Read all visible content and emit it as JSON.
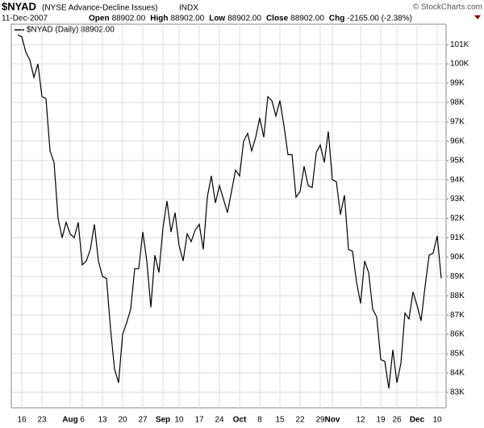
{
  "header": {
    "symbol": "$NYAD",
    "name": "(NYSE Advance-Decline Issues)",
    "exchange": "INDX",
    "date": "11-Dec-2007",
    "stats": [
      {
        "label": "Open",
        "value": "88902.00"
      },
      {
        "label": "High",
        "value": "88902.00"
      },
      {
        "label": "Low",
        "value": "88902.00"
      },
      {
        "label": "Close",
        "value": "88902.00"
      },
      {
        "label": "Chg",
        "value": "-2165.00 (-2.38%)"
      }
    ],
    "credit": "© StockCharts.com"
  },
  "chart_data": {
    "type": "line",
    "categories": [
      null,
      "16",
      null,
      null,
      null,
      null,
      "23",
      null,
      null,
      null,
      null,
      null,
      null,
      "Aug",
      null,
      null,
      "6",
      null,
      null,
      null,
      null,
      "13",
      null,
      null,
      null,
      null,
      "20",
      null,
      null,
      null,
      null,
      "27",
      null,
      null,
      null,
      null,
      "Sep",
      null,
      null,
      null,
      "10",
      null,
      null,
      null,
      null,
      "17",
      null,
      null,
      null,
      null,
      "24",
      null,
      null,
      null,
      null,
      "Oct",
      null,
      null,
      null,
      null,
      "8",
      null,
      null,
      null,
      null,
      "15",
      null,
      null,
      null,
      null,
      "22",
      null,
      null,
      null,
      null,
      "29",
      null,
      null,
      "Nov",
      null,
      null,
      null,
      null,
      null,
      null,
      "12",
      null,
      null,
      null,
      null,
      "19",
      null,
      null,
      null,
      "26",
      null,
      null,
      null,
      null,
      "Dec",
      null,
      null,
      null,
      null,
      "10",
      null
    ],
    "series": [
      {
        "name": "$NYAD (Daily) 88902.00",
        "color": "#000000",
        "values": [
          101500,
          101400,
          100600,
          100200,
          99300,
          100000,
          98300,
          98200,
          95500,
          94900,
          92000,
          91000,
          91800,
          91200,
          91000,
          91800,
          89600,
          89800,
          90400,
          91700,
          89800,
          89000,
          88900,
          86300,
          84200,
          83500,
          86000,
          86600,
          87300,
          89400,
          89400,
          91300,
          89800,
          87400,
          90100,
          89200,
          91500,
          92900,
          91300,
          92300,
          90600,
          89800,
          91200,
          90800,
          91400,
          91700,
          90400,
          93100,
          94200,
          92800,
          93700,
          93000,
          92300,
          93400,
          94500,
          94200,
          96000,
          96400,
          95500,
          96200,
          97200,
          96200,
          98300,
          98100,
          97300,
          98100,
          96800,
          95300,
          95300,
          93100,
          93400,
          94700,
          93700,
          93600,
          95400,
          95800,
          94900,
          96500,
          94000,
          93900,
          92200,
          93200,
          90400,
          90300,
          88700,
          87600,
          89800,
          89200,
          87300,
          86900,
          84700,
          84600,
          83200,
          85200,
          83500,
          84500,
          87100,
          86800,
          88200,
          87500,
          86700,
          88500,
          90100,
          90200,
          91100,
          88902
        ]
      }
    ],
    "ylim": [
      82200,
      102050
    ],
    "yticks": [
      {
        "value": 83000,
        "label": "83K"
      },
      {
        "value": 84000,
        "label": "84K"
      },
      {
        "value": 85000,
        "label": "85K"
      },
      {
        "value": 86000,
        "label": "86K"
      },
      {
        "value": 87000,
        "label": "87K"
      },
      {
        "value": 88000,
        "label": "88K"
      },
      {
        "value": 89000,
        "label": "89K"
      },
      {
        "value": 90000,
        "label": "90K"
      },
      {
        "value": 91000,
        "label": "91K"
      },
      {
        "value": 92000,
        "label": "92K"
      },
      {
        "value": 93000,
        "label": "93K"
      },
      {
        "value": 94000,
        "label": "94K"
      },
      {
        "value": 95000,
        "label": "95K"
      },
      {
        "value": 96000,
        "label": "96K"
      },
      {
        "value": 97000,
        "label": "97K"
      },
      {
        "value": 98000,
        "label": "98K"
      },
      {
        "value": 99000,
        "label": "99K"
      },
      {
        "value": 100000,
        "label": "100K"
      },
      {
        "value": 101000,
        "label": "101K"
      }
    ],
    "grid": true
  }
}
